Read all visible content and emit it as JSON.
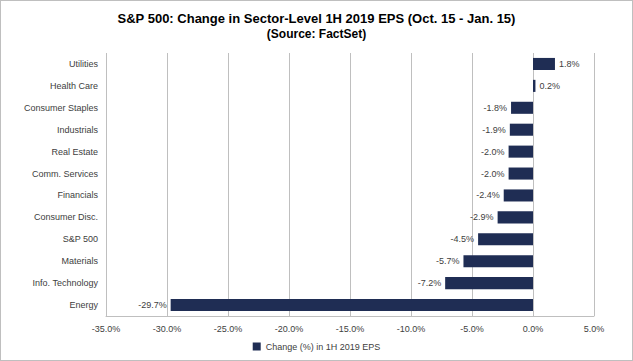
{
  "chart_data": {
    "type": "bar",
    "orientation": "horizontal",
    "title": "S&P 500: Change in Sector-Level 1H 2019 EPS (Oct. 15 - Jan. 15)",
    "subtitle": "(Source: FactSet)",
    "categories": [
      "Utilities",
      "Health Care",
      "Consumer Staples",
      "Industrials",
      "Real Estate",
      "Comm. Services",
      "Financials",
      "Consumer Disc.",
      "S&P 500",
      "Materials",
      "Info. Technology",
      "Energy"
    ],
    "series": [
      {
        "name": "Change (%) in 1H 2019 EPS",
        "color": "#1f2d54",
        "values": [
          1.8,
          0.2,
          -1.8,
          -1.9,
          -2.0,
          -2.0,
          -2.4,
          -2.9,
          -4.5,
          -5.7,
          -7.2,
          -29.7
        ],
        "value_labels": [
          "1.8%",
          "0.2%",
          "-1.8%",
          "-1.9%",
          "-2.0%",
          "-2.0%",
          "-2.4%",
          "-2.9%",
          "-4.5%",
          "-5.7%",
          "-7.2%",
          "-29.7%"
        ]
      }
    ],
    "xlim": [
      -35,
      5
    ],
    "xticks": [
      {
        "value": -35,
        "label": "-35.0%"
      },
      {
        "value": -30,
        "label": "-30.0%"
      },
      {
        "value": -25,
        "label": "-25.0%"
      },
      {
        "value": -20,
        "label": "-20.0%"
      },
      {
        "value": -15,
        "label": "-15.0%"
      },
      {
        "value": -10,
        "label": "-10.0%"
      },
      {
        "value": -5,
        "label": "-5.0%"
      },
      {
        "value": 0,
        "label": "0.0%"
      },
      {
        "value": 5,
        "label": "5.0%"
      }
    ],
    "grid": true,
    "legend": "bottom",
    "data_labels": true
  }
}
